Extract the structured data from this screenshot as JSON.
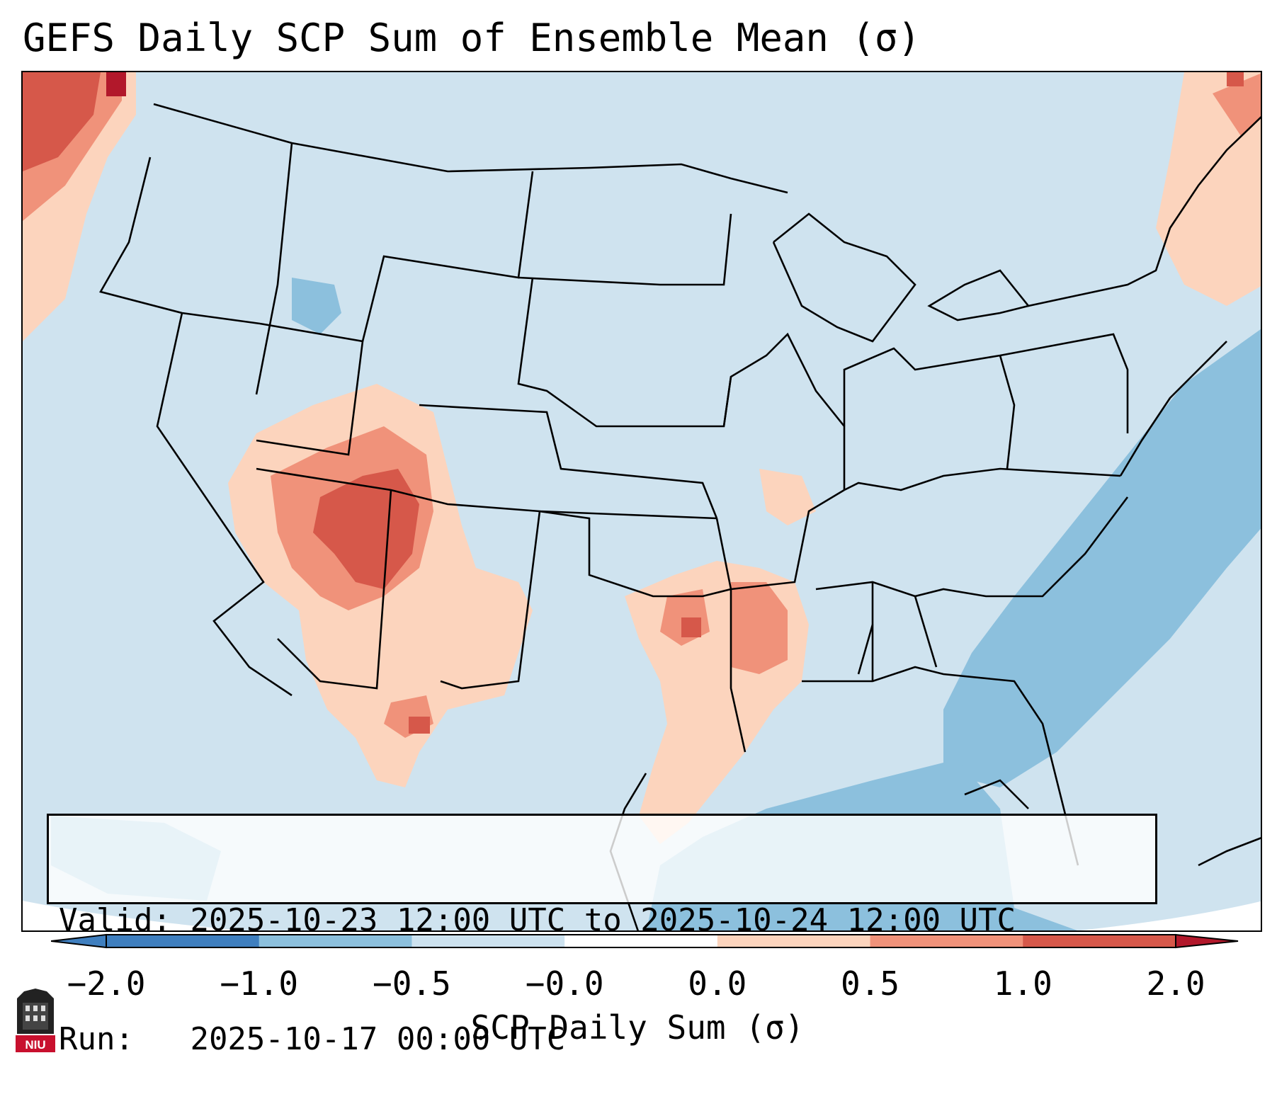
{
  "title": "GEFS Daily SCP Sum of Ensemble Mean (σ)",
  "info": {
    "valid_label": "Valid:",
    "valid_value": "2025-10-23 12:00 UTC to 2025-10-24 12:00 UTC",
    "run_label": "Run:",
    "run_value": "2025-10-17 00:00 UTC"
  },
  "colorbar": {
    "label": "SCP Daily Sum (σ)",
    "ticks": [
      "−2.0",
      "−1.0",
      "−0.5",
      "−0.0",
      "0.0",
      "0.5",
      "1.0",
      "2.0"
    ],
    "colors": [
      "#3f7fbf",
      "#8cc0dd",
      "#cde2ef",
      "#ffffff",
      "#fcd4bd",
      "#f0927a",
      "#d6584a",
      "#b2182b"
    ]
  },
  "logo": {
    "text": "NIU",
    "name": "niu-logo-icon"
  },
  "map": {
    "region": "CONUS",
    "background_color": "#cfe3ef"
  }
}
